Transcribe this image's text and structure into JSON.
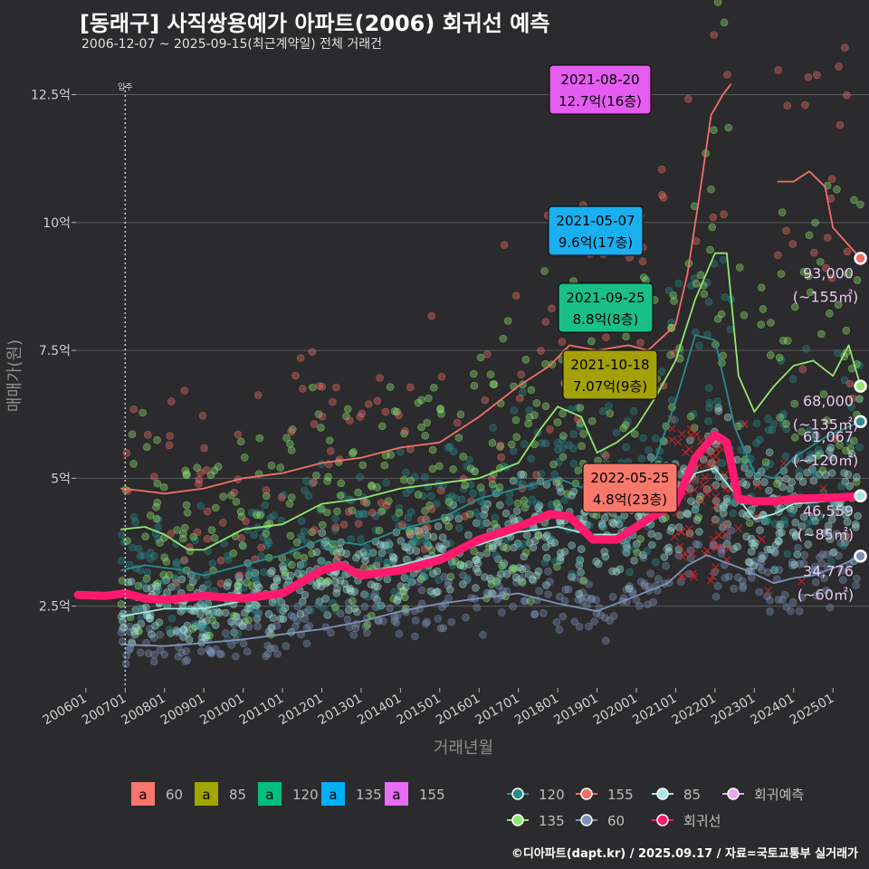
{
  "header": {
    "title": "[동래구] 사직쌍용예가 아파트(2006) 회귀선 예측",
    "subtitle": "2006-12-07 ~ 2025-09-15(최근계약일) 전체 거래건"
  },
  "caption": "©디아파트(dapt.kr) / 2025.09.17 / 자료=국토교통부 실거래가",
  "chart_data": {
    "type": "scatter",
    "xlabel": "거래년월",
    "ylabel": "매매가(원)",
    "x_range": [
      "2005-10",
      "2025-12"
    ],
    "ylim": [
      0.9,
      13.2
    ],
    "yticks": [
      2.5,
      5,
      7.5,
      10,
      12.5
    ],
    "ytick_labels": [
      "2.5억",
      "5억",
      "7.5억",
      "10억",
      "12.5억"
    ],
    "xticks": [
      "200601",
      "200701",
      "200801",
      "200901",
      "201001",
      "201101",
      "201201",
      "201301",
      "201401",
      "201501",
      "201601",
      "201701",
      "201801",
      "201901",
      "202001",
      "202101",
      "202201",
      "202301",
      "202401",
      "202501"
    ],
    "grid": true,
    "move_in": {
      "label": "입주",
      "date": "2007-01"
    },
    "series": [
      {
        "name": "60",
        "color": "#7e92b8",
        "line": [
          [
            2006.9,
            1.75
          ],
          [
            2008,
            1.72
          ],
          [
            2009,
            1.78
          ],
          [
            2010,
            1.85
          ],
          [
            2011,
            1.95
          ],
          [
            2012,
            2.05
          ],
          [
            2013,
            2.2
          ],
          [
            2014,
            2.4
          ],
          [
            2015,
            2.55
          ],
          [
            2016,
            2.65
          ],
          [
            2017,
            2.75
          ],
          [
            2018,
            2.55
          ],
          [
            2019,
            2.4
          ],
          [
            2020,
            2.7
          ],
          [
            2020.8,
            2.95
          ],
          [
            2021.3,
            3.3
          ],
          [
            2021.8,
            3.5
          ],
          [
            2022.1,
            3.4
          ],
          [
            2022.8,
            3.2
          ],
          [
            2023.5,
            2.95
          ],
          [
            2024,
            3.05
          ],
          [
            2024.5,
            3.1
          ],
          [
            2025.2,
            3.3
          ],
          [
            2025.7,
            3.48
          ]
        ],
        "last": 3.4776,
        "last_label": "34,776",
        "area_label": "(~60㎡)"
      },
      {
        "name": "85",
        "color": "#a4e8e0",
        "line": [
          [
            2006.9,
            2.3
          ],
          [
            2007.5,
            2.38
          ],
          [
            2008,
            2.45
          ],
          [
            2009,
            2.45
          ],
          [
            2010,
            2.6
          ],
          [
            2011,
            2.8
          ],
          [
            2011.8,
            3.1
          ],
          [
            2012.3,
            3.25
          ],
          [
            2013,
            3.15
          ],
          [
            2014,
            3.3
          ],
          [
            2015,
            3.5
          ],
          [
            2016,
            3.7
          ],
          [
            2017,
            3.95
          ],
          [
            2018,
            4.05
          ],
          [
            2018.8,
            3.9
          ],
          [
            2019.5,
            3.9
          ],
          [
            2020.3,
            4.1
          ],
          [
            2021,
            4.55
          ],
          [
            2021.5,
            5.1
          ],
          [
            2022,
            5.2
          ],
          [
            2022.6,
            4.6
          ],
          [
            2023,
            4.2
          ],
          [
            2023.5,
            4.3
          ],
          [
            2024,
            4.5
          ],
          [
            2024.8,
            4.55
          ],
          [
            2025.7,
            4.66
          ]
        ],
        "last": 4.6559,
        "last_label": "46,559",
        "area_label": "(~85㎡)"
      },
      {
        "name": "120",
        "color": "#2b8c8c",
        "line": [
          [
            2006.9,
            3.2
          ],
          [
            2007.5,
            3.3
          ],
          [
            2008.5,
            3.2
          ],
          [
            2009,
            3.1
          ],
          [
            2010,
            3.3
          ],
          [
            2011,
            3.5
          ],
          [
            2012,
            3.8
          ],
          [
            2013,
            3.7
          ],
          [
            2014,
            4.0
          ],
          [
            2015,
            4.2
          ],
          [
            2016,
            4.6
          ],
          [
            2017,
            4.8
          ],
          [
            2018,
            5.0
          ],
          [
            2019,
            4.7
          ],
          [
            2020,
            5.0
          ],
          [
            2020.5,
            5.4
          ],
          [
            2021,
            6.5
          ],
          [
            2021.5,
            7.8
          ],
          [
            2022,
            7.7
          ],
          [
            2022.5,
            6.0
          ],
          [
            2023,
            5.1
          ],
          [
            2023.5,
            5.0
          ],
          [
            2024,
            5.4
          ],
          [
            2024.8,
            5.8
          ],
          [
            2025.7,
            6.11
          ]
        ],
        "last": 6.1067,
        "last_label": "61,067",
        "area_label": "(~120㎡)"
      },
      {
        "name": "135",
        "color": "#90e870",
        "line": [
          [
            2006.9,
            4.0
          ],
          [
            2007.5,
            4.05
          ],
          [
            2008,
            3.9
          ],
          [
            2008.6,
            3.6
          ],
          [
            2009,
            3.6
          ],
          [
            2009.5,
            3.8
          ],
          [
            2010,
            4.0
          ],
          [
            2011,
            4.1
          ],
          [
            2012,
            4.5
          ],
          [
            2013,
            4.6
          ],
          [
            2014,
            4.8
          ],
          [
            2015,
            4.9
          ],
          [
            2016,
            5.0
          ],
          [
            2017,
            5.3
          ],
          [
            2017.6,
            6.0
          ],
          [
            2018,
            6.4
          ],
          [
            2018.6,
            6.2
          ],
          [
            2019,
            5.5
          ],
          [
            2019.5,
            5.7
          ],
          [
            2020,
            6.0
          ],
          [
            2020.5,
            6.6
          ],
          [
            2021,
            7.3
          ],
          [
            2021.5,
            8.5
          ],
          [
            2022,
            9.4
          ],
          [
            2022.3,
            9.4
          ],
          [
            2022.6,
            7.0
          ],
          [
            2023,
            6.3
          ],
          [
            2023.5,
            6.8
          ],
          [
            2024,
            7.2
          ],
          [
            2024.5,
            7.3
          ],
          [
            2025,
            7.0
          ],
          [
            2025.4,
            7.6
          ],
          [
            2025.7,
            6.8
          ]
        ],
        "last": 6.8,
        "last_label": "68,000",
        "area_label": "(~135㎡)"
      },
      {
        "name": "155",
        "color": "#f07068",
        "line": [
          [
            2006.9,
            4.8
          ],
          [
            2007.5,
            4.75
          ],
          [
            2008,
            4.7
          ],
          [
            2009,
            4.8
          ],
          [
            2010,
            5.0
          ],
          [
            2011,
            5.1
          ],
          [
            2012,
            5.3
          ],
          [
            2013,
            5.4
          ],
          [
            2014,
            5.6
          ],
          [
            2015,
            5.7
          ],
          [
            2016,
            6.2
          ],
          [
            2017,
            6.8
          ],
          [
            2017.8,
            7.2
          ],
          [
            2018.3,
            7.6
          ],
          [
            2019,
            7.5
          ],
          [
            2019.8,
            7.6
          ],
          [
            2020.3,
            7.5
          ],
          [
            2021,
            8.0
          ],
          [
            2021.3,
            9.0
          ],
          [
            2021.6,
            10.5
          ],
          [
            2021.9,
            12.1
          ],
          [
            2022.2,
            12.5
          ],
          [
            2022.4,
            12.7
          ],
          [
            null,
            null
          ],
          [
            2023.6,
            10.8
          ],
          [
            2024,
            10.8
          ],
          [
            2024.4,
            11.0
          ],
          [
            2024.8,
            10.7
          ],
          [
            2025,
            9.9
          ],
          [
            2025.7,
            9.3
          ]
        ],
        "last": 9.3,
        "last_label": "93,000",
        "area_label": "(~155㎡)"
      },
      {
        "name": "회귀선",
        "color": "#ff1a6e",
        "line": [
          [
            2005.8,
            2.72
          ],
          [
            2006.5,
            2.7
          ],
          [
            2007,
            2.75
          ],
          [
            2007.5,
            2.65
          ],
          [
            2008,
            2.62
          ],
          [
            2009,
            2.7
          ],
          [
            2010,
            2.65
          ],
          [
            2011,
            2.75
          ],
          [
            2012,
            3.2
          ],
          [
            2012.5,
            3.3
          ],
          [
            2013,
            3.1
          ],
          [
            2014,
            3.2
          ],
          [
            2015,
            3.4
          ],
          [
            2016,
            3.8
          ],
          [
            2017,
            4.05
          ],
          [
            2017.8,
            4.3
          ],
          [
            2018.3,
            4.25
          ],
          [
            2018.9,
            3.8
          ],
          [
            2019.5,
            3.8
          ],
          [
            2020.3,
            4.2
          ],
          [
            2021,
            4.5
          ],
          [
            2021.5,
            5.4
          ],
          [
            2022,
            5.85
          ],
          [
            2022.3,
            5.7
          ],
          [
            2022.6,
            4.6
          ],
          [
            2023,
            4.55
          ],
          [
            2023.5,
            4.55
          ],
          [
            2024,
            4.6
          ],
          [
            2025,
            4.62
          ],
          [
            2025.7,
            4.65
          ]
        ]
      }
    ],
    "annotations": [
      {
        "date": "2021-08-20",
        "value": "12.7억(16층)",
        "area": "155",
        "color": "#e45cf0",
        "x": 2021.63,
        "y": 12.7
      },
      {
        "date": "2021-05-07",
        "value": "9.6억(17층)",
        "area": "135",
        "color": "#1ab0f0",
        "x": 2021.35,
        "y": 9.6
      },
      {
        "date": "2021-09-25",
        "value": "8.8억(8층)",
        "area": "120",
        "color": "#18c088",
        "x": 2021.73,
        "y": 8.8
      },
      {
        "date": "2021-10-18",
        "value": "7.07억(9층)",
        "area": "85",
        "color": "#a4a008",
        "x": 2021.8,
        "y": 7.07
      },
      {
        "date": "2022-05-25",
        "value": "4.8억(23층)",
        "area": "60",
        "color": "#f8786c",
        "x": 2022.4,
        "y": 4.8
      }
    ]
  },
  "legend": {
    "fill_items": [
      {
        "key": "a",
        "label": "60",
        "color": "#f8766d"
      },
      {
        "key": "a",
        "label": "85",
        "color": "#a3a500"
      },
      {
        "key": "a",
        "label": "120",
        "color": "#00bf7d"
      },
      {
        "key": "a",
        "label": "135",
        "color": "#00b0f6"
      },
      {
        "key": "a",
        "label": "155",
        "color": "#e76bf3"
      }
    ],
    "line_items": [
      {
        "label": "120",
        "color": "#2b8c8c"
      },
      {
        "label": "155",
        "color": "#f07068"
      },
      {
        "label": "85",
        "color": "#a4e8e0"
      },
      {
        "label": "회귀예측",
        "color": "#e8a8f0"
      },
      {
        "label": "135",
        "color": "#90e870"
      },
      {
        "label": "60",
        "color": "#7e92b8"
      },
      {
        "label": "회귀선",
        "color": "#ff1a6e"
      }
    ]
  }
}
